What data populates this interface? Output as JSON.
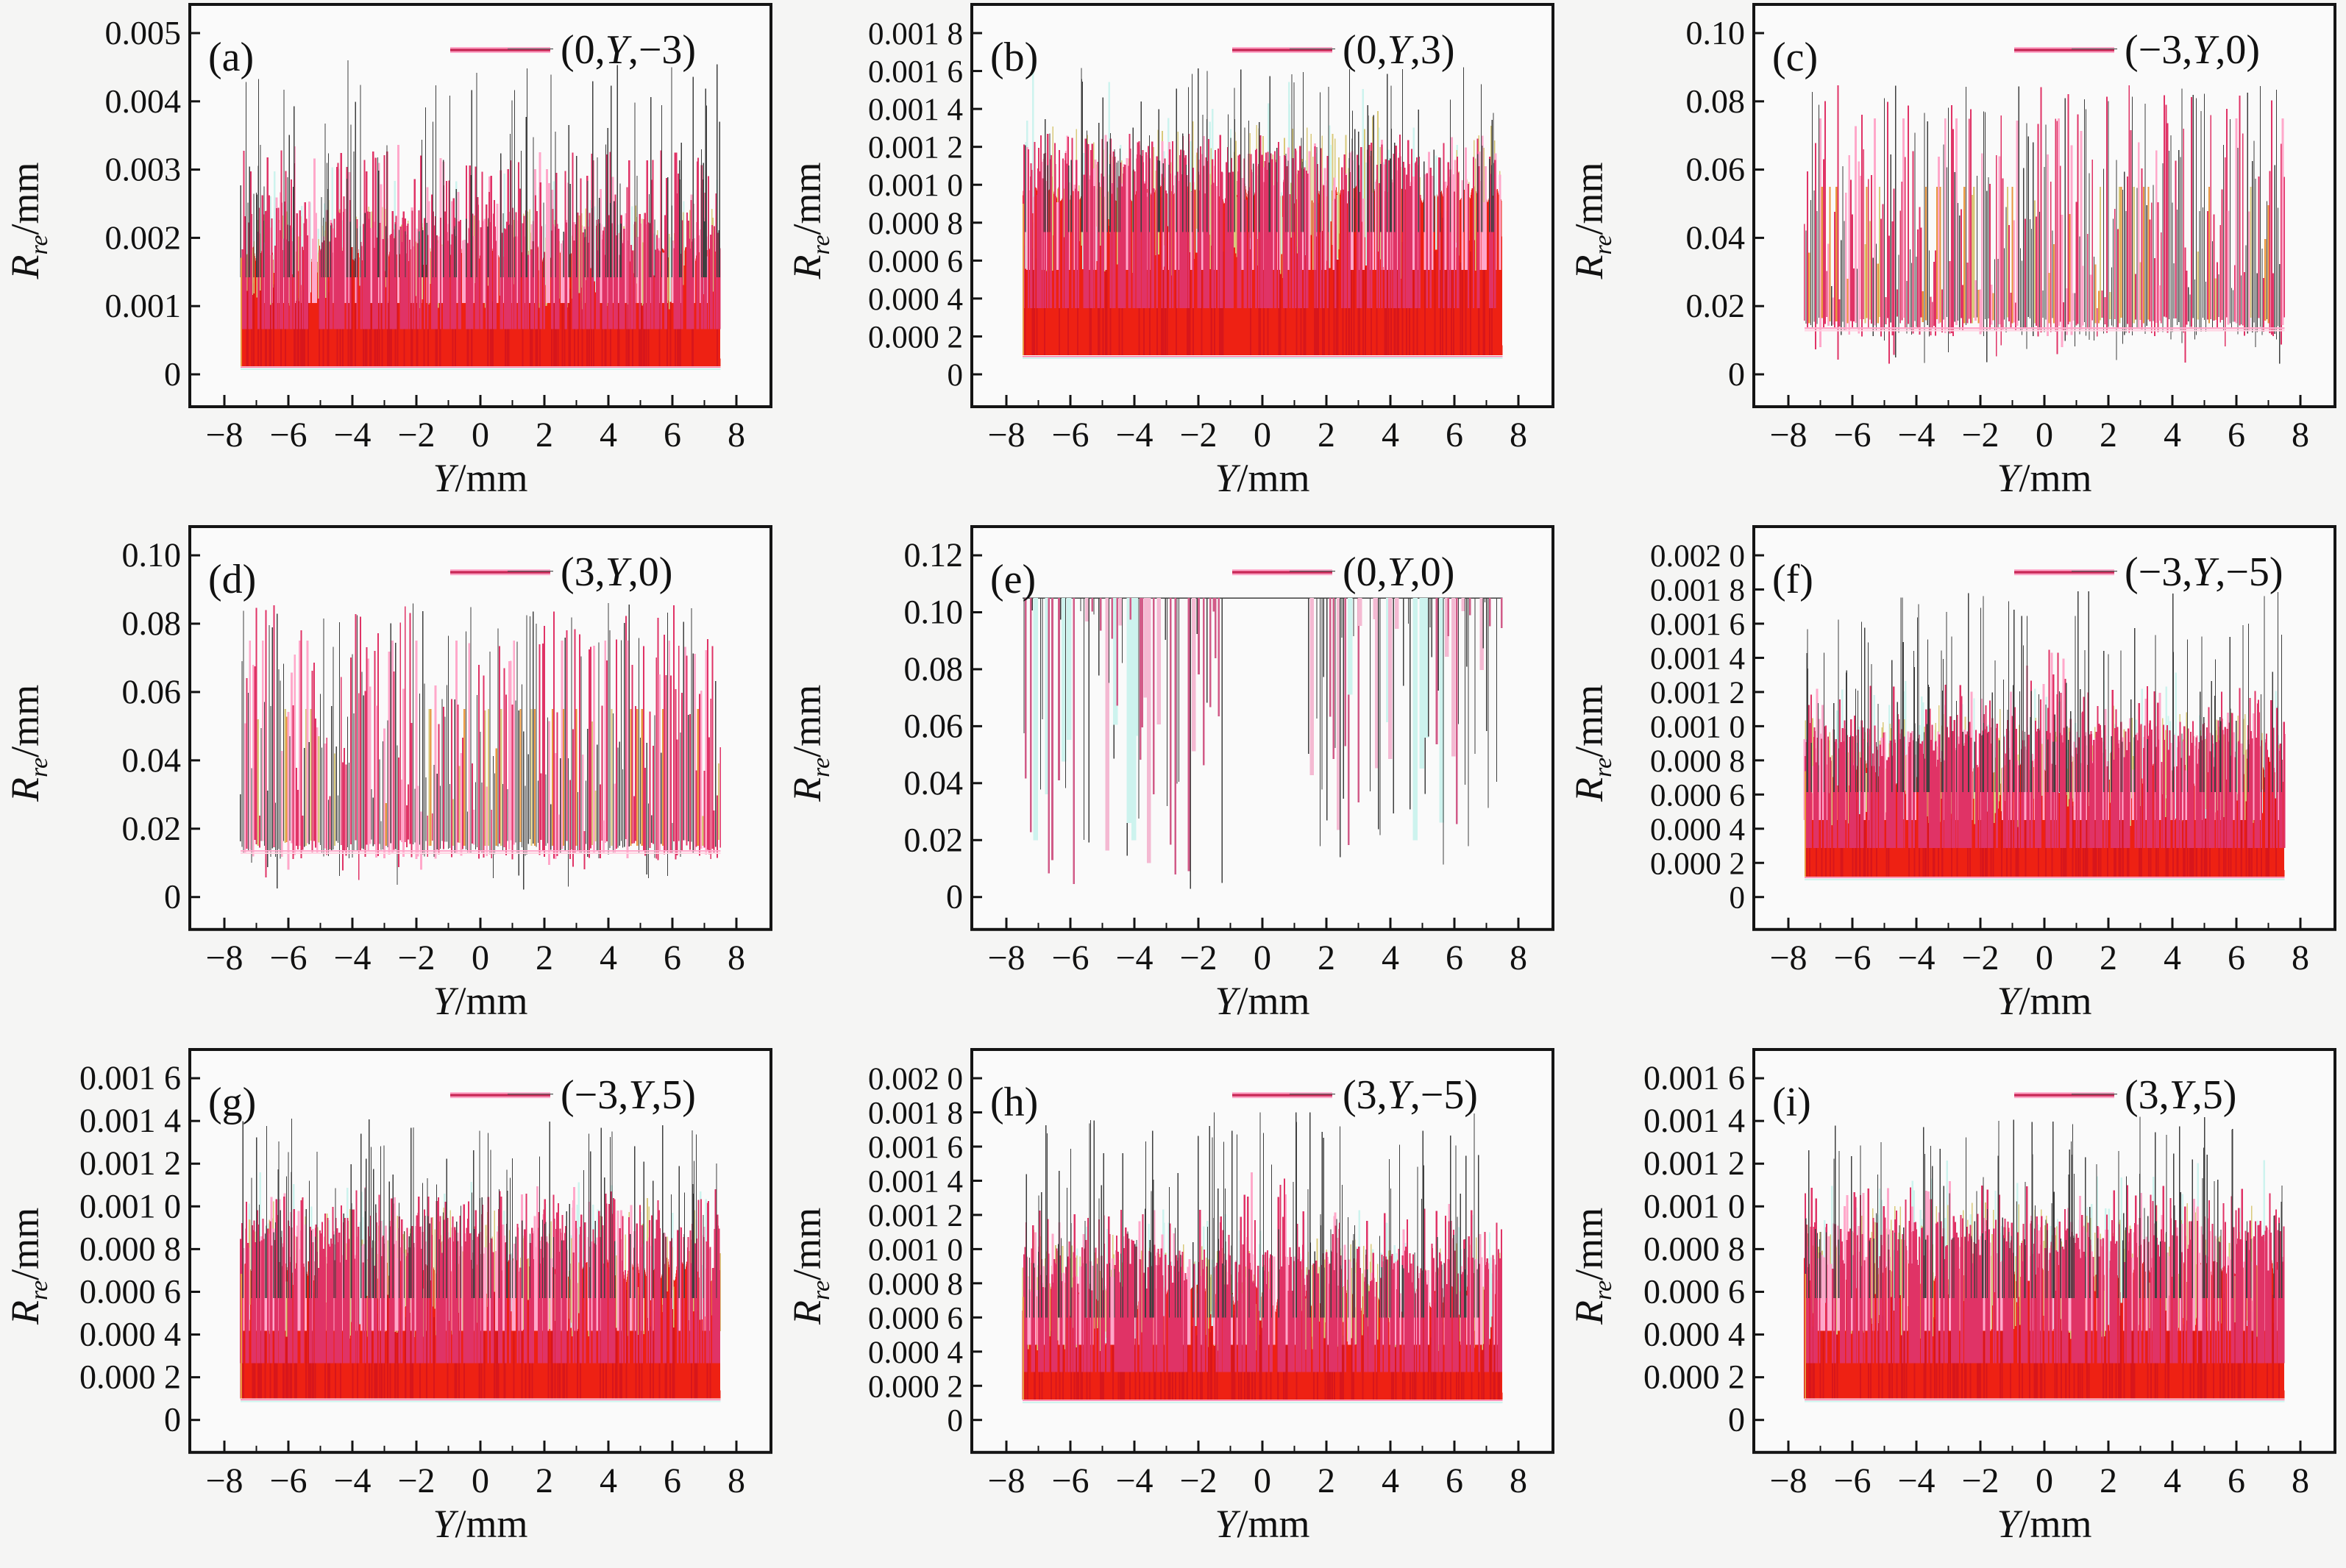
{
  "figure": {
    "background": "#f5f5f4",
    "grid": {
      "rows": 3,
      "cols": 3
    },
    "xlabel_symbol": "Y",
    "xlabel_unit": "/mm",
    "ylabel_symbol": "R",
    "ylabel_subscript": "re",
    "ylabel_unit": "/mm",
    "xtick_labels": [
      "−8",
      "−6",
      "−4",
      "−2",
      "0",
      "2",
      "4",
      "6",
      "8"
    ],
    "xtick_values": [
      -8,
      -6,
      -4,
      -2,
      0,
      2,
      4,
      6,
      8
    ],
    "x_minor_tick_values": [
      -7,
      -5,
      -3,
      -1,
      1,
      3,
      5,
      7
    ],
    "x_data_range": [
      -7.5,
      7.5
    ]
  },
  "colors": {
    "fill_red": "#ee2113",
    "dark_red": "#d8161b",
    "crimson": "#e03366",
    "deep_crimson": "#c92a58",
    "pink": "#ffa8ca",
    "light_pink": "#ffd2e2",
    "gray_line": "#3f3f3f",
    "khaki": "#d9c97a",
    "orange": "#e8973f",
    "cyan": "#cdf3ee",
    "frame": "#141414",
    "text": "#111111",
    "plot_bg": "#fafafa"
  },
  "chart_data": [
    {
      "type": "area-noise",
      "subtype": "dense",
      "panel_label": "(a)",
      "legend": "(0,Y,−3)",
      "seed": 101,
      "ylim": [
        0,
        0.005
      ],
      "ytick_values": [
        0,
        0.001,
        0.002,
        0.003,
        0.004,
        0.005
      ],
      "ytick_labels": [
        "0",
        "0.001",
        "0.002",
        "0.003",
        "0.004",
        "0.005"
      ],
      "envelope": {
        "base_bottom": 0.00012,
        "base_top": 0.0019,
        "top_jitter": 0.18,
        "spike_typical": 0.0033,
        "spike_max": 0.0046,
        "density": 1.0,
        "center_boost": false
      }
    },
    {
      "type": "area-noise",
      "subtype": "dense",
      "panel_label": "(b)",
      "legend": "(0,Y,3)",
      "seed": 202,
      "ylim": [
        0,
        0.0018
      ],
      "ytick_values": [
        0,
        0.0002,
        0.0004,
        0.0006,
        0.0008,
        0.001,
        0.0012,
        0.0014,
        0.0016,
        0.0018
      ],
      "ytick_labels": [
        "0",
        "0.000 2",
        "0.000 4",
        "0.000 6",
        "0.000 8",
        "0.001 0",
        "0.001 2",
        "0.001 4",
        "0.001 6",
        "0.001 8"
      ],
      "envelope": {
        "base_bottom": 0.0001,
        "base_top": 0.001,
        "top_jitter": 0.1,
        "spike_typical": 0.00125,
        "spike_max": 0.00162,
        "density": 0.8,
        "center_boost": false
      }
    },
    {
      "type": "area-noise",
      "subtype": "band",
      "panel_label": "(c)",
      "legend": "(−3,Y,0)",
      "seed": 303,
      "ylim": [
        0,
        0.1
      ],
      "ytick_values": [
        0,
        0.02,
        0.04,
        0.06,
        0.08,
        0.1
      ],
      "ytick_labels": [
        "0",
        "0.02",
        "0.04",
        "0.06",
        "0.08",
        "0.10"
      ],
      "envelope": {
        "base_low": 0.013,
        "deep_min": 0.002,
        "high_max": 0.0855,
        "orange_cap": 0.055,
        "baseline_line": 0.0135
      }
    },
    {
      "type": "area-noise",
      "subtype": "band",
      "panel_label": "(d)",
      "legend": "(3,Y,0)",
      "seed": 404,
      "ylim": [
        0,
        0.1
      ],
      "ytick_values": [
        0,
        0.02,
        0.04,
        0.06,
        0.08,
        0.1
      ],
      "ytick_labels": [
        "0",
        "0.02",
        "0.04",
        "0.06",
        "0.08",
        "0.10"
      ],
      "envelope": {
        "base_low": 0.013,
        "deep_min": 0.002,
        "high_max": 0.0862,
        "orange_cap": 0.055,
        "baseline_line": 0.0135
      }
    },
    {
      "type": "area-noise",
      "subtype": "plateau",
      "panel_label": "(e)",
      "legend": "(0,Y,0)",
      "seed": 505,
      "ylim": [
        0,
        0.12
      ],
      "ytick_values": [
        0,
        0.02,
        0.04,
        0.06,
        0.08,
        0.1,
        0.12
      ],
      "ytick_labels": [
        "0",
        "0.02",
        "0.04",
        "0.06",
        "0.08",
        "0.10",
        "0.12"
      ],
      "envelope": {
        "level": 0.105,
        "dip_min": 0.002,
        "gap": [
          -1.25,
          1.35
        ]
      }
    },
    {
      "type": "area-noise",
      "subtype": "dense",
      "panel_label": "(f)",
      "legend": "(−3,Y,−5)",
      "seed": 606,
      "ylim": [
        0,
        0.002
      ],
      "ytick_values": [
        0,
        0.0002,
        0.0004,
        0.0006,
        0.0008,
        0.001,
        0.0012,
        0.0014,
        0.0016,
        0.0018,
        0.002
      ],
      "ytick_labels": [
        "0",
        "0.000 2",
        "0.000 4",
        "0.000 6",
        "0.000 8",
        "0.001 0",
        "0.001 2",
        "0.001 4",
        "0.001 6",
        "0.001 8",
        "0.002 0"
      ],
      "envelope": {
        "base_bottom": 0.00012,
        "base_top": 0.00082,
        "top_jitter": 0.22,
        "spike_typical": 0.00125,
        "spike_max": 0.00179,
        "density": 1.05,
        "center_boost": true
      }
    },
    {
      "type": "area-noise",
      "subtype": "dense",
      "panel_label": "(g)",
      "legend": "(−3,Y,5)",
      "seed": 707,
      "ylim": [
        0,
        0.0016
      ],
      "ytick_values": [
        0,
        0.0002,
        0.0004,
        0.0006,
        0.0008,
        0.001,
        0.0012,
        0.0014,
        0.0016
      ],
      "ytick_labels": [
        "0",
        "0.000 2",
        "0.000 4",
        "0.000 6",
        "0.000 8",
        "0.001 0",
        "0.001 2",
        "0.001 4",
        "0.001 6"
      ],
      "envelope": {
        "base_bottom": 0.0001,
        "base_top": 0.00076,
        "top_jitter": 0.16,
        "spike_typical": 0.00108,
        "spike_max": 0.00141,
        "density": 0.95,
        "center_boost": false
      }
    },
    {
      "type": "area-noise",
      "subtype": "dense",
      "panel_label": "(h)",
      "legend": "(3,Y,−5)",
      "seed": 808,
      "ylim": [
        0,
        0.002
      ],
      "ytick_values": [
        0,
        0.0002,
        0.0004,
        0.0006,
        0.0008,
        0.001,
        0.0012,
        0.0014,
        0.0016,
        0.0018,
        0.002
      ],
      "ytick_labels": [
        "0",
        "0.000 2",
        "0.000 4",
        "0.000 6",
        "0.000 8",
        "0.001 0",
        "0.001 2",
        "0.001 4",
        "0.001 6",
        "0.001 8",
        "0.002 0"
      ],
      "envelope": {
        "base_bottom": 0.00012,
        "base_top": 0.0008,
        "top_jitter": 0.22,
        "spike_typical": 0.00125,
        "spike_max": 0.0018,
        "density": 1.05,
        "center_boost": true
      }
    },
    {
      "type": "area-noise",
      "subtype": "dense",
      "panel_label": "(i)",
      "legend": "(3,Y,5)",
      "seed": 909,
      "ylim": [
        0,
        0.0016
      ],
      "ytick_values": [
        0,
        0.0002,
        0.0004,
        0.0006,
        0.0008,
        0.001,
        0.0012,
        0.0014,
        0.0016
      ],
      "ytick_labels": [
        "0",
        "0.000 2",
        "0.000 4",
        "0.000 6",
        "0.000 8",
        "0.001 0",
        "0.001 2",
        "0.001 4",
        "0.001 6"
      ],
      "envelope": {
        "base_bottom": 0.0001,
        "base_top": 0.00076,
        "top_jitter": 0.16,
        "spike_typical": 0.0011,
        "spike_max": 0.00142,
        "density": 0.95,
        "center_boost": false
      }
    }
  ]
}
